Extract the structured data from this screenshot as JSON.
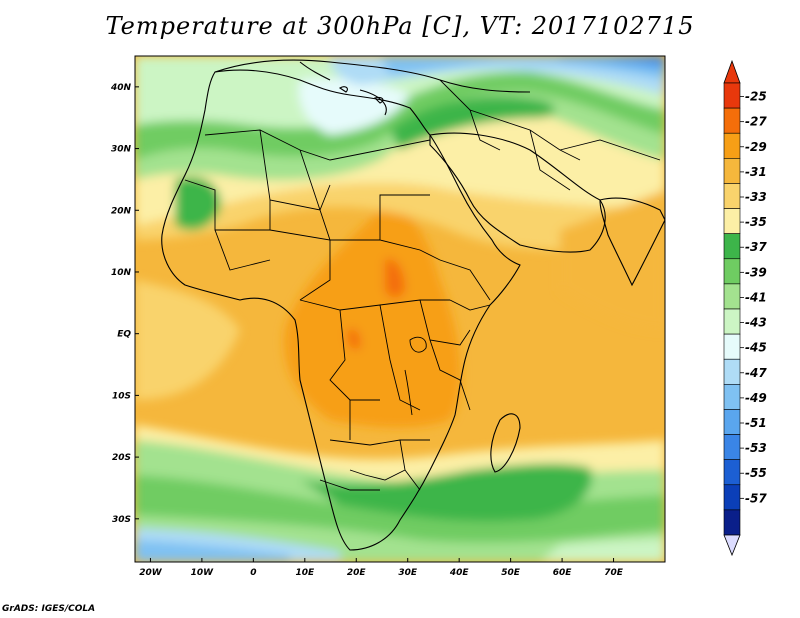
{
  "title": "Temperature at 300hPa [C], VT: 2017102715",
  "credit": "GrADS: IGES/COLA",
  "map": {
    "projection": "latlon",
    "lon_range": [
      -23,
      80
    ],
    "lat_range": [
      -37,
      45
    ],
    "lon_ticks": [
      {
        "value": -20,
        "label": "20W"
      },
      {
        "value": -10,
        "label": "10W"
      },
      {
        "value": 0,
        "label": "0"
      },
      {
        "value": 10,
        "label": "10E"
      },
      {
        "value": 20,
        "label": "20E"
      },
      {
        "value": 30,
        "label": "30E"
      },
      {
        "value": 40,
        "label": "40E"
      },
      {
        "value": 50,
        "label": "50E"
      },
      {
        "value": 60,
        "label": "60E"
      },
      {
        "value": 70,
        "label": "70E"
      }
    ],
    "lat_ticks": [
      {
        "value": 40,
        "label": "40N"
      },
      {
        "value": 30,
        "label": "30N"
      },
      {
        "value": 20,
        "label": "20N"
      },
      {
        "value": 10,
        "label": "10N"
      },
      {
        "value": 0,
        "label": "EQ"
      },
      {
        "value": -10,
        "label": "10S"
      },
      {
        "value": -20,
        "label": "20S"
      },
      {
        "value": -30,
        "label": "30S"
      }
    ]
  },
  "colorbar": {
    "labels": [
      "-25",
      "-27",
      "-29",
      "-31",
      "-33",
      "-35",
      "-37",
      "-39",
      "-41",
      "-43",
      "-45",
      "-47",
      "-49",
      "-51",
      "-53",
      "-55",
      "-57"
    ],
    "colors": [
      "#e8380c",
      "#f46e0a",
      "#f79f16",
      "#f5b73c",
      "#f9d36c",
      "#fcefa6",
      "#3db54a",
      "#6fcc62",
      "#a3e28f",
      "#ccf5c4",
      "#e6fbfb",
      "#afdcf6",
      "#7fc1f2",
      "#5aa6ee",
      "#3a85e6",
      "#1c5fd3",
      "#0b3fb8",
      "#0a1f8a"
    ],
    "upper_triangle_color": "#e8380c",
    "lower_triangle_color": "#dcdcff"
  }
}
